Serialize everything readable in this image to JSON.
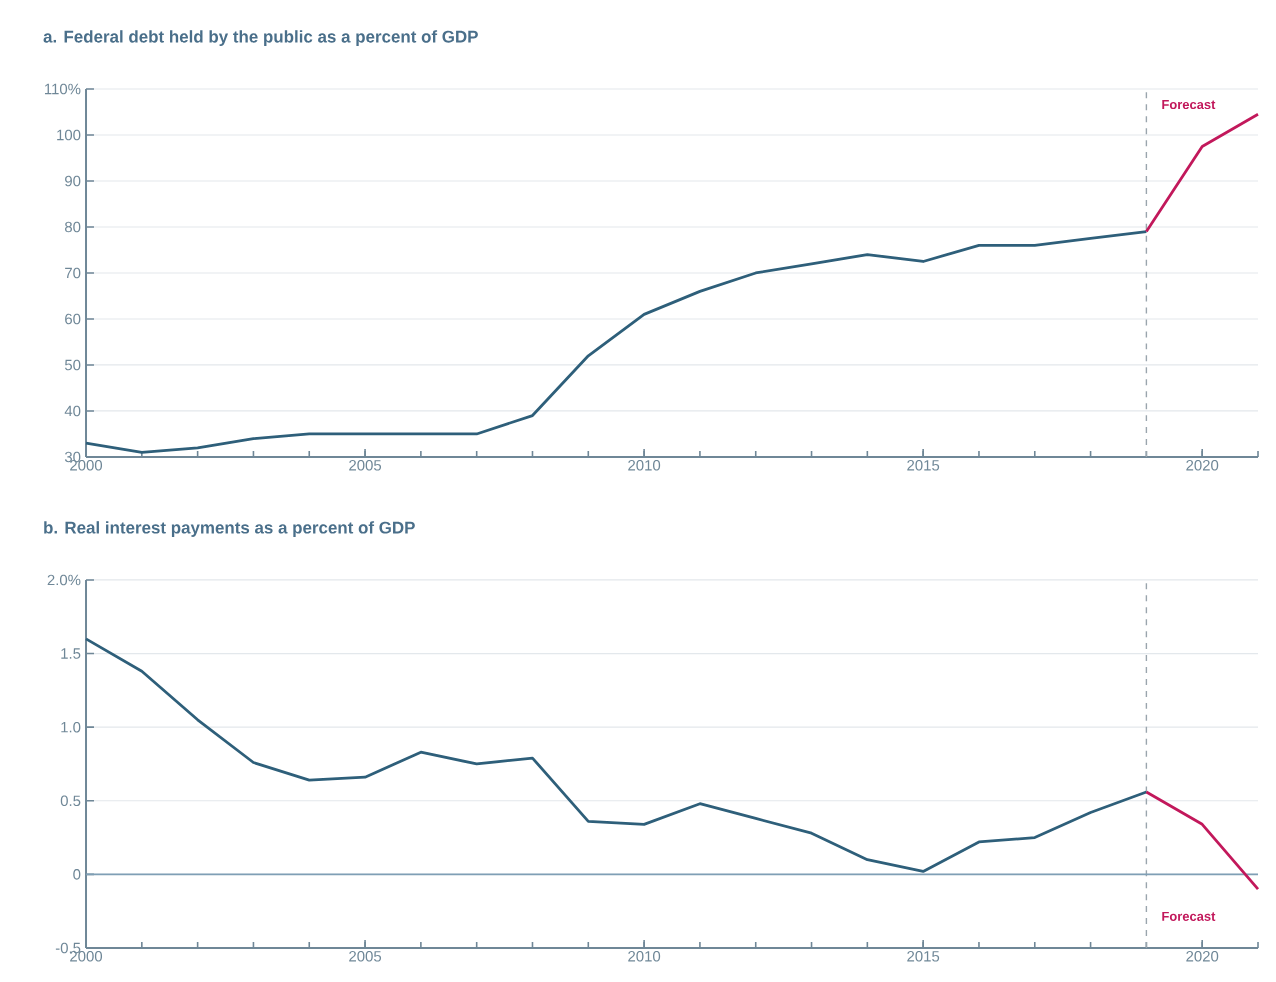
{
  "chart_data": [
    {
      "type": "line",
      "title": "a. Federal debt held by the public as a percent of GDP",
      "series": [
        {
          "color": "#2e5f7a",
          "x": [
            2000,
            2001,
            2002,
            2003,
            2004,
            2005,
            2006,
            2007,
            2008,
            2009,
            2010,
            2011,
            2012,
            2013,
            2014,
            2015,
            2016,
            2017,
            2018,
            2019
          ],
          "values": [
            33,
            31,
            32,
            34,
            35,
            35,
            35,
            35,
            39,
            52,
            61,
            66,
            70,
            72,
            74,
            72.5,
            76,
            76,
            77.5,
            79
          ]
        },
        {
          "color": "#c2185b",
          "x": [
            2019,
            2020,
            2021
          ],
          "values": [
            79,
            97.5,
            104.5
          ]
        }
      ],
      "xlim": [
        2000,
        2021
      ],
      "xticks": [
        2000,
        2005,
        2010,
        2015,
        2020
      ],
      "ylim": [
        30,
        110
      ],
      "yticks": [
        {
          "value": 110,
          "label": "110%"
        },
        100,
        90,
        80,
        70,
        60,
        50,
        40,
        30
      ],
      "grid": "y",
      "ref_lines": [
        {
          "axis": "x",
          "value": 2019,
          "color": "#9aa5ad",
          "line_style": "dashed",
          "label": "Forecast"
        }
      ]
    },
    {
      "type": "line",
      "title": "b. Real interest payments as a percent of GDP",
      "series": [
        {
          "color": "#2e5f7a",
          "x": [
            2000,
            2001,
            2002,
            2003,
            2004,
            2005,
            2006,
            2007,
            2008,
            2009,
            2010,
            2011,
            2012,
            2013,
            2014,
            2015,
            2016,
            2017,
            2018,
            2019
          ],
          "values": [
            1.6,
            1.38,
            1.05,
            0.76,
            0.64,
            0.66,
            0.83,
            0.75,
            0.79,
            0.36,
            0.34,
            0.48,
            0.38,
            0.28,
            0.1,
            0.02,
            0.22,
            0.25,
            0.42,
            0.56
          ]
        },
        {
          "color": "#c2185b",
          "x": [
            2019,
            2020,
            2021
          ],
          "values": [
            0.56,
            0.34,
            -0.1
          ]
        }
      ],
      "xlim": [
        2000,
        2021
      ],
      "xticks": [
        2000,
        2005,
        2010,
        2015,
        2020
      ],
      "ylim": [
        -0.5,
        2
      ],
      "yticks": [
        {
          "value": 2,
          "label": "2.0%"
        },
        1.5,
        {
          "value": 1,
          "label": "1.0"
        },
        0.5,
        0,
        -0.5
      ],
      "grid": "y",
      "ref_lines": [
        {
          "axis": "x",
          "value": 2019,
          "color": "#9aa5ad",
          "line_style": "dashed",
          "label": "Forecast"
        },
        {
          "axis": "y",
          "value": 0,
          "color": "#7f9fb5",
          "line_style": "solid"
        }
      ]
    }
  ]
}
